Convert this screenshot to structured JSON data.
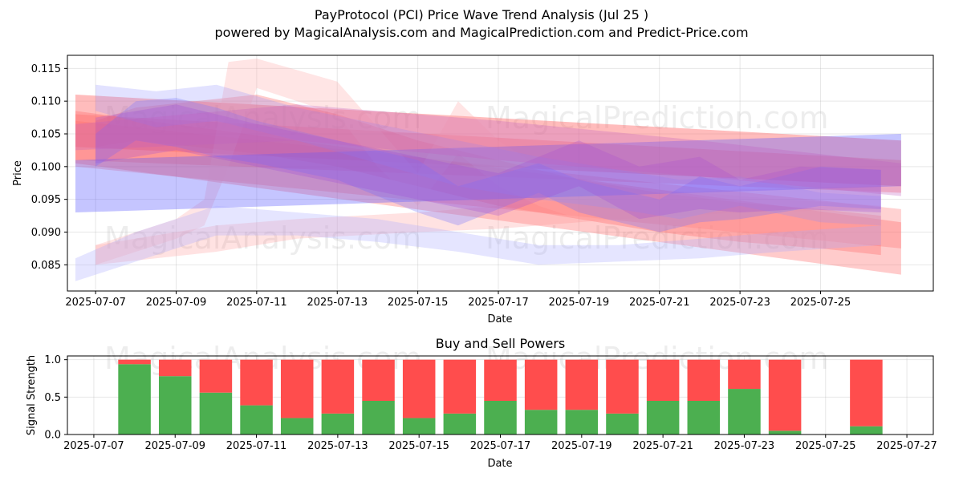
{
  "chart_data": [
    {
      "type": "area",
      "title_line1": "PayProtocol (PCI) Price Wave Trend Analysis (Jul 25 )",
      "title_line2": "powered by MagicalAnalysis.com and MagicalPrediction.com and Predict-Price.com",
      "xlabel": "Date",
      "ylabel": "Price",
      "ylim": [
        0.081,
        0.117
      ],
      "xlim_days": [
        -0.7,
        20.8
      ],
      "x_origin": "2025-07-07",
      "x_ticks": [
        "2025-07-07",
        "2025-07-09",
        "2025-07-11",
        "2025-07-13",
        "2025-07-15",
        "2025-07-17",
        "2025-07-19",
        "2025-07-21",
        "2025-07-23",
        "2025-07-25"
      ],
      "y_ticks": [
        "0.085",
        "0.090",
        "0.095",
        "0.100",
        "0.105",
        "0.110",
        "0.115"
      ],
      "y_tick_values": [
        0.085,
        0.09,
        0.095,
        0.1,
        0.105,
        0.11,
        0.115
      ],
      "watermarks": [
        "MagicalAnalysis.com",
        "MagicalPrediction.com"
      ],
      "bands": [
        {
          "color": "#ff6b6b",
          "opacity": 0.35,
          "x": [
            -0.5,
            20
          ],
          "upper": [
            0.108,
            0.101
          ],
          "lower": [
            0.101,
            0.096
          ]
        },
        {
          "color": "#ff6b6b",
          "opacity": 0.45,
          "x": [
            -0.5,
            20
          ],
          "upper": [
            0.111,
            0.104
          ],
          "lower": [
            0.103,
            0.097
          ]
        },
        {
          "color": "#ff6b6b",
          "opacity": 0.35,
          "x": [
            -0.5,
            20
          ],
          "upper": [
            0.1085,
            0.0915
          ],
          "lower": [
            0.1005,
            0.0835
          ]
        },
        {
          "color": "#ff6b6b",
          "opacity": 0.3,
          "x": [
            -0.5,
            20
          ],
          "upper": [
            0.107,
            0.0935
          ],
          "lower": [
            0.1,
            0.0875
          ]
        },
        {
          "color": "#ff6b6b",
          "opacity": 0.35,
          "x": [
            0,
            1,
            4,
            6,
            8,
            10,
            12,
            14,
            16,
            18,
            19.5
          ],
          "upper": [
            0.107,
            0.109,
            0.111,
            0.108,
            0.104,
            0.101,
            0.098,
            0.096,
            0.0945,
            0.0935,
            0.0925
          ],
          "lower": [
            0.103,
            0.104,
            0.102,
            0.1,
            0.097,
            0.094,
            0.092,
            0.09,
            0.0885,
            0.0875,
            0.0865
          ]
        },
        {
          "color": "#ff8a8a",
          "opacity": 0.25,
          "x": [
            0,
            3,
            5,
            8,
            10,
            13,
            16,
            19.5
          ],
          "upper": [
            0.088,
            0.091,
            0.092,
            0.093,
            0.094,
            0.0955,
            0.0965,
            0.097
          ],
          "lower": [
            0.085,
            0.087,
            0.089,
            0.09,
            0.0905,
            0.092,
            0.093,
            0.0935
          ]
        },
        {
          "color": "#ffaaaa",
          "opacity": 0.3,
          "x": [
            0,
            1,
            2,
            2.7,
            3.3,
            4,
            6,
            7,
            8,
            9,
            10,
            11,
            12,
            13,
            15,
            17,
            19.5
          ],
          "upper": [
            0.088,
            0.09,
            0.092,
            0.095,
            0.116,
            0.1165,
            0.113,
            0.106,
            0.099,
            0.11,
            0.104,
            0.1,
            0.098,
            0.097,
            0.096,
            0.095,
            0.094
          ],
          "lower": [
            0.085,
            0.087,
            0.089,
            0.091,
            0.1,
            0.112,
            0.108,
            0.1,
            0.094,
            0.102,
            0.097,
            0.094,
            0.092,
            0.091,
            0.09,
            0.089,
            0.088
          ]
        },
        {
          "color": "#5a5aff",
          "opacity": 0.35,
          "x": [
            -0.5,
            20
          ],
          "upper": [
            0.101,
            0.105
          ],
          "lower": [
            0.093,
            0.097
          ]
        },
        {
          "color": "#7070ff",
          "opacity": 0.3,
          "x": [
            0,
            1,
            2,
            3,
            4,
            6,
            8,
            9,
            11,
            12,
            14,
            15,
            16,
            18,
            19.5
          ],
          "upper": [
            0.105,
            0.11,
            0.1105,
            0.109,
            0.107,
            0.104,
            0.101,
            0.097,
            0.1005,
            0.098,
            0.095,
            0.0985,
            0.097,
            0.1,
            0.0995
          ],
          "lower": [
            0.1,
            0.104,
            0.103,
            0.1015,
            0.1005,
            0.098,
            0.093,
            0.091,
            0.096,
            0.093,
            0.09,
            0.0915,
            0.092,
            0.094,
            0.0935
          ]
        },
        {
          "color": "#8a8aff",
          "opacity": 0.25,
          "x": [
            0,
            1.5,
            3,
            5,
            7,
            9,
            11,
            13,
            14.5,
            16,
            18,
            19.5
          ],
          "upper": [
            0.1125,
            0.1115,
            0.1125,
            0.109,
            0.1065,
            0.104,
            0.1015,
            0.0995,
            0.098,
            0.0985,
            0.096,
            0.0955
          ],
          "lower": [
            0.1085,
            0.106,
            0.107,
            0.104,
            0.1005,
            0.097,
            0.095,
            0.0935,
            0.092,
            0.094,
            0.0915,
            0.091
          ]
        },
        {
          "color": "#aaaaff",
          "opacity": 0.3,
          "x": [
            -0.5,
            1,
            3,
            5,
            7,
            9,
            11,
            13,
            15,
            17,
            19.5
          ],
          "upper": [
            0.086,
            0.09,
            0.094,
            0.093,
            0.092,
            0.09,
            0.088,
            0.088,
            0.089,
            0.09,
            0.091
          ],
          "lower": [
            0.0825,
            0.0855,
            0.0895,
            0.0895,
            0.0885,
            0.087,
            0.085,
            0.0855,
            0.086,
            0.087,
            0.088
          ]
        },
        {
          "color": "#9d4ad6",
          "opacity": 0.28,
          "x": [
            0,
            2,
            4,
            6,
            8,
            10,
            12,
            13.5,
            15,
            16,
            17.5,
            19.5
          ],
          "upper": [
            0.1075,
            0.1095,
            0.1065,
            0.104,
            0.1015,
            0.099,
            0.104,
            0.1,
            0.1015,
            0.098,
            0.1,
            0.0995
          ],
          "lower": [
            0.1005,
            0.1025,
            0.1,
            0.0975,
            0.095,
            0.0925,
            0.097,
            0.092,
            0.0935,
            0.093,
            0.0935,
            0.093
          ]
        },
        {
          "color": "#c060c0",
          "opacity": 0.3,
          "x": [
            -0.5,
            5,
            10,
            15,
            20
          ],
          "upper": [
            0.1065,
            0.1095,
            0.107,
            0.104,
            0.1005
          ],
          "lower": [
            0.1025,
            0.104,
            0.101,
            0.0985,
            0.0955
          ]
        }
      ]
    },
    {
      "type": "bar",
      "title": "Buy and Sell Powers",
      "xlabel": "Date",
      "ylabel": "Signal Strength",
      "ylim": [
        0,
        1.05
      ],
      "xlim_days": [
        -0.65,
        20.65
      ],
      "x_origin": "2025-07-07",
      "x_ticks": [
        "2025-07-07",
        "2025-07-09",
        "2025-07-11",
        "2025-07-13",
        "2025-07-15",
        "2025-07-17",
        "2025-07-19",
        "2025-07-21",
        "2025-07-23",
        "2025-07-25",
        "2025-07-27"
      ],
      "y_ticks": [
        "0.0",
        "0.5",
        "1.0"
      ],
      "y_tick_values": [
        0,
        0.5,
        1.0
      ],
      "buy_color": "#4caf50",
      "sell_color": "#ff4d4d",
      "series": [
        {
          "name": "Buy",
          "values": [
            0.94,
            0.78,
            0.56,
            0.39,
            0.22,
            0.28,
            0.45,
            0.22,
            0.28,
            0.45,
            0.33,
            0.33,
            0.28,
            0.45,
            0.45,
            0.61,
            0.05,
            0,
            0.11
          ]
        },
        {
          "name": "Sell",
          "values": [
            0.06,
            0.22,
            0.44,
            0.61,
            0.78,
            0.72,
            0.55,
            0.78,
            0.72,
            0.55,
            0.67,
            0.67,
            0.72,
            0.55,
            0.55,
            0.39,
            0.95,
            0,
            0.89
          ]
        }
      ],
      "categories": [
        "2025-07-08",
        "2025-07-09",
        "2025-07-10",
        "2025-07-11",
        "2025-07-12",
        "2025-07-13",
        "2025-07-14",
        "2025-07-15",
        "2025-07-16",
        "2025-07-17",
        "2025-07-18",
        "2025-07-19",
        "2025-07-20",
        "2025-07-21",
        "2025-07-22",
        "2025-07-23",
        "2025-07-24",
        "2025-07-25",
        "2025-07-26"
      ],
      "watermarks": [
        "MagicalAnalysis.com",
        "MagicalPrediction.com"
      ]
    }
  ]
}
